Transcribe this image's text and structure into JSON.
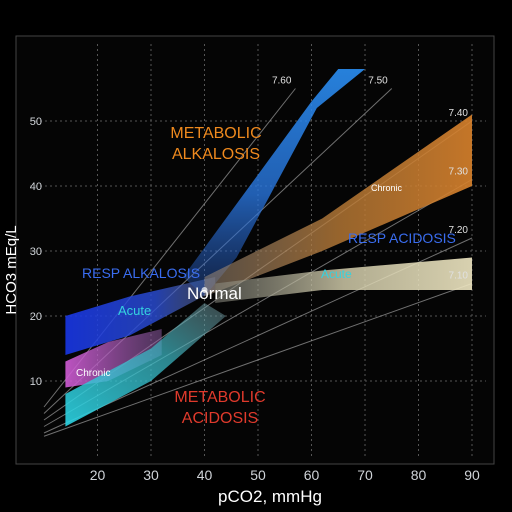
{
  "chart_data": {
    "type": "area",
    "xlabel": "pCO2, mmHg",
    "ylabel": "HCO3 mEq/L",
    "xlim": [
      10,
      90
    ],
    "ylim": [
      0,
      60
    ],
    "x_ticks": [
      20,
      30,
      40,
      50,
      60,
      70,
      80,
      90
    ],
    "y_ticks": [
      10,
      20,
      30,
      40,
      50
    ],
    "grid": true,
    "ph_isopleths": [
      {
        "label": "7.60",
        "points": [
          [
            10,
            6
          ],
          [
            57,
            55
          ]
        ]
      },
      {
        "label": "7.50",
        "points": [
          [
            10,
            5
          ],
          [
            75,
            55
          ]
        ]
      },
      {
        "label": "7.40",
        "points": [
          [
            10,
            4
          ],
          [
            90,
            50
          ]
        ]
      },
      {
        "label": "7.30",
        "points": [
          [
            10,
            3
          ],
          [
            90,
            41
          ]
        ]
      },
      {
        "label": "7.20",
        "points": [
          [
            10,
            2
          ],
          [
            90,
            32
          ]
        ]
      },
      {
        "label": "7.10",
        "points": [
          [
            10,
            1.5
          ],
          [
            90,
            25
          ]
        ]
      }
    ],
    "regions": [
      {
        "name": "Resp Alkalosis Acute",
        "polygon": [
          [
            14,
            20
          ],
          [
            14,
            14
          ],
          [
            26,
            17
          ],
          [
            42,
            24
          ],
          [
            42,
            26
          ],
          [
            26,
            23
          ]
        ]
      },
      {
        "name": "Resp Alkalosis Chronic",
        "polygon": [
          [
            14,
            13
          ],
          [
            14,
            9
          ],
          [
            22,
            10
          ],
          [
            32,
            14
          ],
          [
            32,
            18
          ],
          [
            22,
            16
          ]
        ]
      },
      {
        "name": "Metabolic Alkalosis",
        "polygon": [
          [
            40,
            23
          ],
          [
            36,
            26
          ],
          [
            60,
            53
          ],
          [
            65,
            58
          ],
          [
            70,
            58
          ],
          [
            61,
            52
          ],
          [
            46,
            29
          ]
        ]
      },
      {
        "name": "Metabolic Acidosis",
        "polygon": [
          [
            14,
            3
          ],
          [
            14,
            8
          ],
          [
            30,
            15
          ],
          [
            40,
            22
          ],
          [
            44,
            20
          ],
          [
            30,
            10
          ]
        ]
      },
      {
        "name": "Resp Acidosis Chronic",
        "polygon": [
          [
            40,
            23
          ],
          [
            40,
            26
          ],
          [
            62,
            35
          ],
          [
            90,
            51
          ],
          [
            90,
            40
          ],
          [
            62,
            30
          ]
        ]
      },
      {
        "name": "Resp Acidosis Acute",
        "polygon": [
          [
            42,
            22
          ],
          [
            42,
            25
          ],
          [
            62,
            27
          ],
          [
            90,
            29
          ],
          [
            90,
            24
          ],
          [
            62,
            24
          ]
        ]
      }
    ],
    "normal": {
      "x": 40,
      "y": 24
    },
    "labels": {
      "metabolic_alkalosis": [
        "METABOLIC",
        "ALKALOSIS"
      ],
      "metabolic_acidosis": [
        "METABOLIC",
        "ACIDOSIS"
      ],
      "resp_alkalosis": "RESP ALKALOSIS",
      "resp_acidosis": "RESP ACIDOSIS",
      "acute": "Acute",
      "chronic": "Chronic",
      "normal": "Normal"
    },
    "colors": {
      "metabolic_alkalosis_text": "#f08a1e",
      "metabolic_acidosis_text": "#e03a2c",
      "resp_text": "#3a6df0",
      "acute_text": "#34d3e0",
      "chronic_text": "#ffffff",
      "normal_text": "#ffffff",
      "isopleth": "#c8c8c8",
      "grid": "#555555"
    }
  }
}
